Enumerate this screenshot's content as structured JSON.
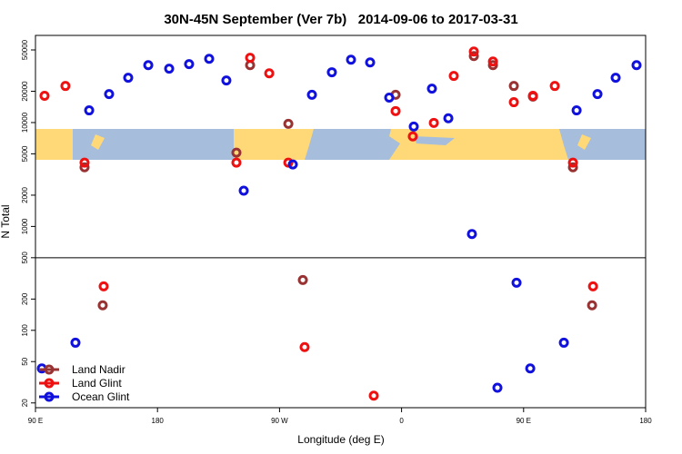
{
  "chart_data": {
    "type": "scatter",
    "title": "30N-45N September (Ver 7b)   2014-09-06 to 2017-03-31",
    "xlabel": "Longitude (deg E)",
    "ylabel": "N Total",
    "ylog": true,
    "legend": "bottom-left",
    "xlim": [
      90,
      540
    ],
    "ylim": [
      18,
      69000
    ],
    "xticks": [
      {
        "value": 90,
        "label": "90 E"
      },
      180,
      {
        "value": 270,
        "label": "90 W"
      },
      {
        "value": 360,
        "label": "0"
      },
      {
        "value": 450,
        "label": "90 E"
      },
      {
        "value": 540,
        "label": "180"
      }
    ],
    "yticks": [
      20,
      50,
      100,
      200,
      500,
      1000,
      2000,
      5000,
      10000,
      20000,
      50000
    ],
    "series": [
      {
        "name": "Land Nadir",
        "color": "#993333",
        "x": [
          126.2,
          139.6,
          238.2,
          248.3,
          276.5,
          287.2,
          355.6,
          413.3,
          427.4,
          442.8,
          456.9,
          486.4,
          500.5
        ],
        "values": [
          3710,
          174,
          5130,
          35700,
          9720,
          305,
          18500,
          43700,
          35700,
          22500,
          17800,
          3710,
          174
        ]
      },
      {
        "name": "Land Glint",
        "color": "#ee1111",
        "x": [
          96.7,
          112.1,
          126.2,
          140.3,
          238.2,
          248.3,
          262.4,
          276.5,
          288.5,
          339.5,
          355.6,
          368.3,
          383.8,
          398.5,
          413.3,
          427.4,
          442.8,
          456.9,
          473.0,
          486.4,
          501.2
        ],
        "values": [
          18100,
          22500,
          4110,
          265,
          4110,
          42000,
          29800,
          4110,
          69,
          23.5,
          12900,
          7350,
          9930,
          28100,
          48300,
          38700,
          15700,
          18100,
          22500,
          4110,
          265
        ]
      },
      {
        "name": "Ocean Glint",
        "color": "#1111dd",
        "x": [
          94.7,
          119.5,
          129.6,
          144.3,
          158.4,
          173.2,
          188.6,
          203.3,
          218.1,
          230.8,
          243.6,
          279.8,
          293.9,
          308.6,
          322.7,
          336.8,
          350.9,
          369.0,
          382.4,
          394.5,
          411.9,
          430.7,
          444.8,
          454.9,
          479.7,
          489.1,
          504.5,
          517.9,
          533.3
        ],
        "values": [
          43,
          76,
          13100,
          18800,
          27000,
          35700,
          33000,
          36500,
          41100,
          25400,
          2210,
          3950,
          18500,
          30500,
          40300,
          37900,
          17400,
          9160,
          21200,
          11000,
          846,
          28,
          287,
          43,
          76,
          13100,
          18800,
          27000,
          35700
        ]
      }
    ]
  }
}
